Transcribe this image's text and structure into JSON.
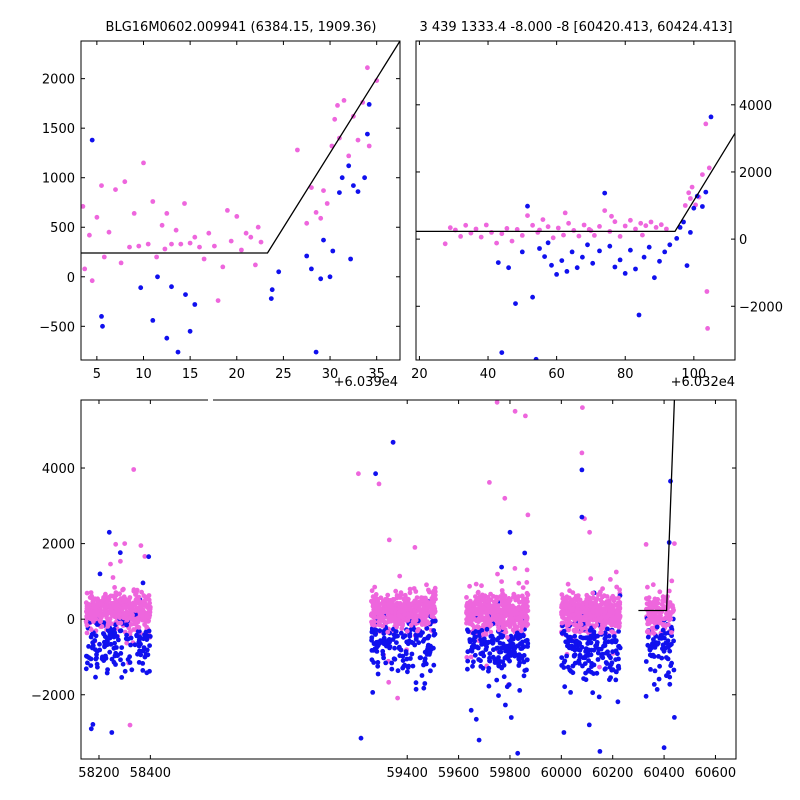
{
  "colors": {
    "pink": "#ee66dd",
    "blue": "#1010ee",
    "model": "#000000"
  },
  "chart_data": [
    {
      "id": "top_left",
      "type": "scatter",
      "title": "BLG16M0602.009941 (6384.15, 1909.36)",
      "offset_label": "+6.039e4",
      "xlim": [
        3.3,
        37.5
      ],
      "ylim": [
        -840,
        2380
      ],
      "xticks": [
        5,
        10,
        15,
        20,
        25,
        30,
        35
      ],
      "yticks": [
        -500,
        0,
        500,
        1000,
        1500,
        2000
      ],
      "y_axis_side": "left",
      "model_line": [
        [
          3.3,
          240
        ],
        [
          23.3,
          240
        ],
        [
          37.5,
          2380
        ]
      ],
      "series": [
        {
          "color": "pink",
          "values": [
            [
              3.5,
              710
            ],
            [
              3.7,
              80
            ],
            [
              4.2,
              420
            ],
            [
              4.5,
              -40
            ],
            [
              5.0,
              600
            ],
            [
              5.5,
              920
            ],
            [
              5.8,
              200
            ],
            [
              6.3,
              450
            ],
            [
              7.0,
              880
            ],
            [
              7.6,
              140
            ],
            [
              8.0,
              960
            ],
            [
              8.5,
              300
            ],
            [
              9.0,
              640
            ],
            [
              9.5,
              310
            ],
            [
              10.0,
              1150
            ],
            [
              10.5,
              330
            ],
            [
              11.0,
              760
            ],
            [
              11.4,
              200
            ],
            [
              12.0,
              520
            ],
            [
              12.3,
              280
            ],
            [
              12.5,
              640
            ],
            [
              13.0,
              330
            ],
            [
              13.5,
              470
            ],
            [
              14.0,
              330
            ],
            [
              14.4,
              740
            ],
            [
              15.0,
              340
            ],
            [
              15.5,
              400
            ],
            [
              16.0,
              300
            ],
            [
              16.5,
              180
            ],
            [
              17.0,
              440
            ],
            [
              17.6,
              310
            ],
            [
              18.0,
              -240
            ],
            [
              18.5,
              100
            ],
            [
              19.0,
              670
            ],
            [
              19.4,
              360
            ],
            [
              20.0,
              610
            ],
            [
              20.5,
              270
            ],
            [
              21.0,
              440
            ],
            [
              21.5,
              400
            ],
            [
              22.0,
              120
            ],
            [
              22.3,
              500
            ],
            [
              22.6,
              350
            ],
            [
              26.5,
              1280
            ],
            [
              27.5,
              540
            ],
            [
              28.0,
              900
            ],
            [
              28.5,
              650
            ],
            [
              29.0,
              590
            ],
            [
              29.3,
              870
            ],
            [
              29.7,
              740
            ],
            [
              30.2,
              1320
            ],
            [
              30.5,
              1590
            ],
            [
              30.8,
              1730
            ],
            [
              31.5,
              1780
            ],
            [
              31.0,
              1400
            ],
            [
              32.0,
              1220
            ],
            [
              32.5,
              1620
            ],
            [
              33.0,
              1380
            ],
            [
              33.5,
              1760
            ],
            [
              34.0,
              2110
            ],
            [
              34.2,
              1320
            ],
            [
              35.0,
              1980
            ]
          ]
        },
        {
          "color": "blue",
          "values": [
            [
              4.5,
              1380
            ],
            [
              5.5,
              -400
            ],
            [
              5.6,
              -500
            ],
            [
              9.7,
              -110
            ],
            [
              11.0,
              -440
            ],
            [
              11.5,
              0
            ],
            [
              12.5,
              -620
            ],
            [
              13.0,
              -100
            ],
            [
              13.7,
              -760
            ],
            [
              14.5,
              -180
            ],
            [
              15.0,
              -550
            ],
            [
              15.5,
              -280
            ],
            [
              23.7,
              -220
            ],
            [
              23.8,
              -130
            ],
            [
              24.5,
              50
            ],
            [
              27.5,
              210
            ],
            [
              28.0,
              80
            ],
            [
              28.5,
              -760
            ],
            [
              29.0,
              -20
            ],
            [
              29.3,
              370
            ],
            [
              30.0,
              0
            ],
            [
              30.3,
              260
            ],
            [
              31.0,
              850
            ],
            [
              31.3,
              1000
            ],
            [
              32.0,
              1120
            ],
            [
              32.5,
              920
            ],
            [
              33.0,
              860
            ],
            [
              33.7,
              1000
            ],
            [
              34.0,
              1440
            ],
            [
              34.2,
              1740
            ],
            [
              32.2,
              180
            ]
          ]
        }
      ]
    },
    {
      "id": "top_right",
      "type": "scatter",
      "title": "3 439 1333.4 -8.000 -8 [60420.413, 60424.413]",
      "offset_label": "+6.032e4",
      "xlim": [
        19.0,
        112.0
      ],
      "ylim": [
        -3600,
        5900
      ],
      "xticks": [
        20,
        40,
        60,
        80,
        100
      ],
      "yticks": [
        -2000,
        0,
        2000,
        4000
      ],
      "y_axis_side": "right",
      "model_line": [
        [
          19.0,
          230
        ],
        [
          94.5,
          230
        ],
        [
          112.0,
          3150
        ]
      ],
      "series": [
        {
          "color": "pink",
          "values": [
            [
              27.5,
              -140
            ],
            [
              29.0,
              340
            ],
            [
              30.5,
              270
            ],
            [
              32.0,
              80
            ],
            [
              33.5,
              410
            ],
            [
              35.0,
              180
            ],
            [
              36.5,
              300
            ],
            [
              38.0,
              60
            ],
            [
              39.5,
              420
            ],
            [
              41.0,
              200
            ],
            [
              42.5,
              -120
            ],
            [
              44.0,
              160
            ],
            [
              45.5,
              320
            ],
            [
              47.0,
              -60
            ],
            [
              48.5,
              290
            ],
            [
              50.0,
              110
            ],
            [
              51.5,
              700
            ],
            [
              53.0,
              410
            ],
            [
              54.5,
              200
            ],
            [
              56.0,
              580
            ],
            [
              57.5,
              370
            ],
            [
              59.0,
              40
            ],
            [
              60.5,
              330
            ],
            [
              62.0,
              120
            ],
            [
              63.5,
              470
            ],
            [
              65.0,
              260
            ],
            [
              66.5,
              90
            ],
            [
              68.0,
              420
            ],
            [
              69.5,
              290
            ],
            [
              71.0,
              110
            ],
            [
              72.5,
              380
            ],
            [
              74.0,
              850
            ],
            [
              75.5,
              230
            ],
            [
              77.0,
              520
            ],
            [
              78.5,
              80
            ],
            [
              80.0,
              390
            ],
            [
              81.5,
              560
            ],
            [
              83.0,
              300
            ],
            [
              84.5,
              470
            ],
            [
              86.0,
              400
            ],
            [
              87.5,
              510
            ],
            [
              89.0,
              350
            ],
            [
              90.5,
              430
            ],
            [
              92.0,
              300
            ],
            [
              55.0,
              270
            ],
            [
              62.5,
              780
            ],
            [
              70.0,
              250
            ],
            [
              76.0,
              680
            ],
            [
              85.0,
              120
            ],
            [
              97.5,
              1000
            ],
            [
              98.5,
              1380
            ],
            [
              99.5,
              1550
            ],
            [
              100.5,
              1020
            ],
            [
              101.5,
              1250
            ],
            [
              102.5,
              1920
            ],
            [
              103.5,
              3430
            ],
            [
              104.5,
              2120
            ],
            [
              103.8,
              -1560
            ],
            [
              104.0,
              -2660
            ],
            [
              99.0,
              1210
            ]
          ]
        },
        {
          "color": "blue",
          "values": [
            [
              43.0,
              -700
            ],
            [
              44.0,
              -3380
            ],
            [
              46.0,
              -850
            ],
            [
              48.0,
              -1920
            ],
            [
              50.0,
              -380
            ],
            [
              51.5,
              980
            ],
            [
              53.0,
              -1730
            ],
            [
              54.0,
              -3580
            ],
            [
              55.0,
              -280
            ],
            [
              56.5,
              -520
            ],
            [
              57.5,
              -110
            ],
            [
              58.5,
              -780
            ],
            [
              60.0,
              -1050
            ],
            [
              61.5,
              -640
            ],
            [
              63.0,
              -960
            ],
            [
              64.5,
              -380
            ],
            [
              66.0,
              -850
            ],
            [
              67.5,
              -540
            ],
            [
              69.0,
              -170
            ],
            [
              70.5,
              -720
            ],
            [
              72.5,
              -350
            ],
            [
              74.0,
              1370
            ],
            [
              75.5,
              -210
            ],
            [
              77.0,
              -830
            ],
            [
              78.5,
              -620
            ],
            [
              80.0,
              -1020
            ],
            [
              81.5,
              -330
            ],
            [
              83.0,
              -890
            ],
            [
              84.0,
              -2260
            ],
            [
              85.5,
              -540
            ],
            [
              87.0,
              -240
            ],
            [
              88.5,
              -1150
            ],
            [
              90.0,
              -660
            ],
            [
              91.5,
              -380
            ],
            [
              93.0,
              -170
            ],
            [
              95.0,
              20
            ],
            [
              96.0,
              350
            ],
            [
              97.0,
              510
            ],
            [
              98.0,
              -790
            ],
            [
              99.0,
              200
            ],
            [
              100.0,
              920
            ],
            [
              101.0,
              1280
            ],
            [
              102.5,
              970
            ],
            [
              103.5,
              1400
            ],
            [
              105.0,
              3640
            ]
          ]
        }
      ]
    },
    {
      "id": "bottom",
      "type": "scatter",
      "title": "",
      "xlim": [
        58130,
        60680
      ],
      "ylim": [
        -3700,
        5800
      ],
      "xticks": [
        58200,
        58400,
        59400,
        59600,
        59800,
        60000,
        60200,
        60400,
        60600
      ],
      "yticks": [
        -2000,
        0,
        2000,
        4000
      ],
      "y_axis_side": "left",
      "model_line": [
        [
          60300,
          230
        ],
        [
          60410,
          230
        ],
        [
          60440,
          5800
        ]
      ],
      "seasons": [
        {
          "x": [
            58150,
            58400
          ],
          "pink_center": 180,
          "blue_center": -280,
          "n_pink": 260,
          "n_blue": 150
        },
        {
          "x": [
            59260,
            59510
          ],
          "pink_center": 200,
          "blue_center": -300,
          "n_pink": 280,
          "n_blue": 160
        },
        {
          "x": [
            59630,
            59870
          ],
          "pink_center": 180,
          "blue_center": -380,
          "n_pink": 300,
          "n_blue": 180
        },
        {
          "x": [
            60000,
            60230
          ],
          "pink_center": 170,
          "blue_center": -420,
          "n_pink": 300,
          "n_blue": 180
        },
        {
          "x": [
            60330,
            60440
          ],
          "pink_center": 150,
          "blue_center": -350,
          "n_pink": 90,
          "n_blue": 70
        }
      ],
      "outliers": [
        {
          "color": "pink",
          "values": [
            [
              58335,
              3960
            ],
            [
              59210,
              3850
            ],
            [
              59345,
              4680
            ],
            [
              59750,
              5740
            ],
            [
              59820,
              5500
            ],
            [
              59860,
              5380
            ],
            [
              60082,
              5600
            ],
            [
              60080,
              4400
            ],
            [
              60330,
              1980
            ],
            [
              60440,
              2000
            ],
            [
              59430,
              1900
            ],
            [
              59780,
              3200
            ],
            [
              60110,
              2300
            ],
            [
              58300,
              2000
            ],
            [
              59290,
              3580
            ],
            [
              59870,
              2760
            ],
            [
              60090,
              2660
            ],
            [
              59720,
              3620
            ]
          ]
        },
        {
          "color": "blue",
          "values": [
            [
              58240,
              2300
            ],
            [
              58283,
              1760
            ],
            [
              59277,
              3850
            ],
            [
              59345,
              4680
            ],
            [
              60080,
              3950
            ],
            [
              60080,
              2700
            ],
            [
              60425,
              3650
            ],
            [
              60420,
              2030
            ],
            [
              60400,
              -3400
            ],
            [
              59800,
              2300
            ],
            [
              58170,
              -2900
            ],
            [
              58250,
              -3000
            ],
            [
              59220,
              -3150
            ],
            [
              59680,
              -3200
            ],
            [
              59830,
              -3550
            ],
            [
              60010,
              -3000
            ],
            [
              60150,
              -3500
            ],
            [
              60440,
              -2600
            ]
          ]
        }
      ]
    }
  ]
}
